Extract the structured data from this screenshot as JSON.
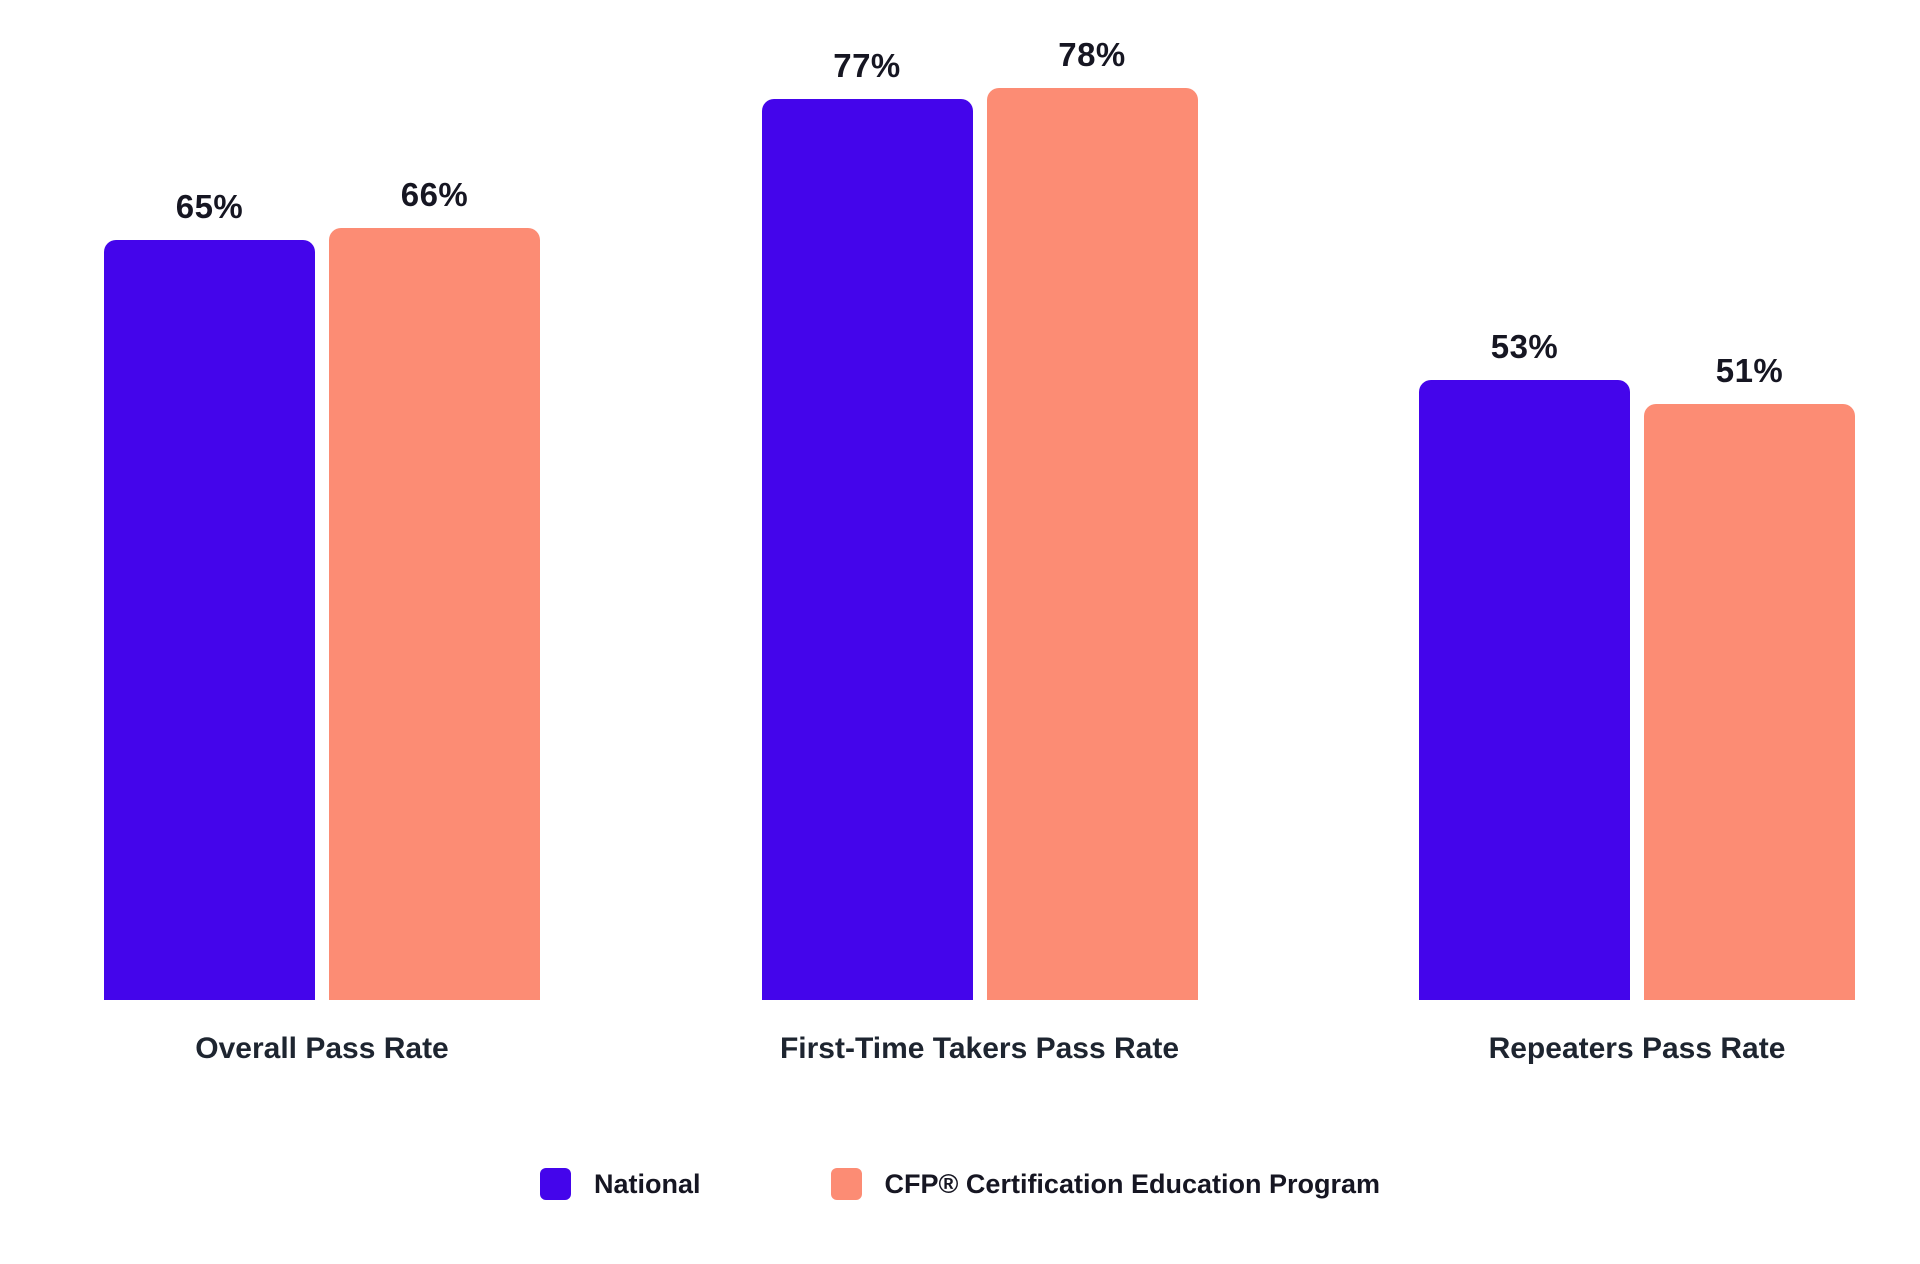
{
  "chart_data": {
    "type": "bar",
    "categories": [
      "Overall Pass Rate",
      "First-Time Takers Pass Rate",
      "Repeaters Pass Rate"
    ],
    "series": [
      {
        "name": "National",
        "color": "#4405EB",
        "values": [
          65,
          77,
          53
        ],
        "labels": [
          "65%",
          "77%",
          "53%"
        ]
      },
      {
        "name": "CFP® Certification Education Program",
        "color": "#FC8C74",
        "values": [
          66,
          78,
          51
        ],
        "labels": [
          "66%",
          "78%",
          "51%"
        ]
      }
    ],
    "title": "",
    "xlabel": "",
    "ylabel": "",
    "ylim": [
      0,
      85.5
    ],
    "grid": false,
    "axes_visible": false,
    "value_label_suffix": "%",
    "legend_position": "bottom-center",
    "colors": {
      "background": "#ffffff",
      "value_label_text": "#161622",
      "category_label_text": "#1e2530",
      "legend_text": "#161622"
    }
  }
}
